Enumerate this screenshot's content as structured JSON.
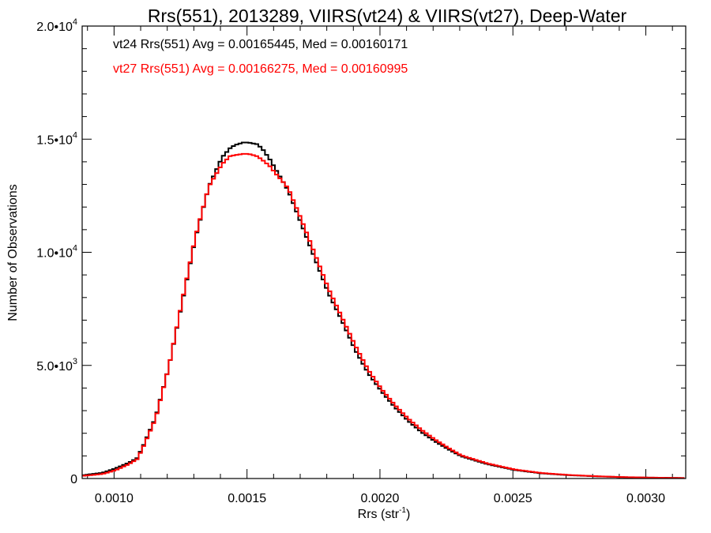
{
  "chart_data": {
    "type": "line",
    "title": "Rrs(551), 2013289, VIIRS(vt24) & VIIRS(vt27), Deep-Water",
    "xlabel": "Rrs (str",
    "xlabel_sup": "-1",
    "xlabel_end": ")",
    "ylabel": "Number of Observations",
    "xlim": [
      0.00088,
      0.00315
    ],
    "ylim": [
      0,
      20000
    ],
    "grid": false,
    "x_ticks": [
      {
        "value": 0.001,
        "label": "0.0010"
      },
      {
        "value": 0.0015,
        "label": "0.0015"
      },
      {
        "value": 0.002,
        "label": "0.0020"
      },
      {
        "value": 0.0025,
        "label": "0.0025"
      },
      {
        "value": 0.003,
        "label": "0.0030"
      }
    ],
    "y_ticks": [
      {
        "value": 0,
        "base": "0",
        "exp": ""
      },
      {
        "value": 5000,
        "base": "5.0•10",
        "exp": "3"
      },
      {
        "value": 10000,
        "base": "1.0•10",
        "exp": "4"
      },
      {
        "value": 15000,
        "base": "1.5•10",
        "exp": "4"
      },
      {
        "value": 20000,
        "base": "2.0•10",
        "exp": "4"
      }
    ],
    "annotations": [
      "vt24 Rrs(551) Avg = 0.00165445, Med = 0.00160171",
      "vt27 Rrs(551) Avg = 0.00166275, Med = 0.00160995"
    ],
    "series": [
      {
        "color": "#000000",
        "x": [
          0.00088,
          0.00095,
          0.001,
          0.00105,
          0.00108,
          0.0011,
          0.00115,
          0.0012,
          0.00125,
          0.0013,
          0.00135,
          0.0014,
          0.00143,
          0.00145,
          0.00148,
          0.0015,
          0.00153,
          0.00155,
          0.00158,
          0.0016,
          0.00163,
          0.00165,
          0.0017,
          0.00175,
          0.0018,
          0.00185,
          0.0019,
          0.00195,
          0.002,
          0.00205,
          0.0021,
          0.00215,
          0.0022,
          0.00225,
          0.0023,
          0.0024,
          0.0025,
          0.0026,
          0.0027,
          0.0028,
          0.0029,
          0.003,
          0.0031,
          0.00315
        ],
        "y": [
          150,
          250,
          450,
          700,
          900,
          1350,
          2700,
          4950,
          7800,
          10650,
          12900,
          14200,
          14600,
          14750,
          14850,
          14850,
          14780,
          14600,
          14100,
          13700,
          13100,
          12700,
          11200,
          9700,
          8200,
          7000,
          5700,
          4650,
          3850,
          3150,
          2550,
          2050,
          1650,
          1300,
          980,
          630,
          380,
          230,
          150,
          100,
          60,
          40,
          25,
          20
        ]
      },
      {
        "color": "#ff0000",
        "x": [
          0.00088,
          0.00095,
          0.001,
          0.00105,
          0.00108,
          0.0011,
          0.00115,
          0.0012,
          0.00125,
          0.0013,
          0.00135,
          0.0014,
          0.00143,
          0.00145,
          0.00148,
          0.0015,
          0.00153,
          0.00155,
          0.00158,
          0.0016,
          0.00163,
          0.00165,
          0.0017,
          0.00175,
          0.0018,
          0.00185,
          0.0019,
          0.00195,
          0.002,
          0.00205,
          0.0021,
          0.00215,
          0.0022,
          0.00225,
          0.0023,
          0.0024,
          0.0025,
          0.0026,
          0.0027,
          0.0028,
          0.0029,
          0.003,
          0.0031,
          0.00315
        ],
        "y": [
          120,
          200,
          370,
          640,
          850,
          1300,
          2650,
          4950,
          7850,
          10700,
          12900,
          13900,
          14250,
          14300,
          14350,
          14350,
          14250,
          14100,
          13800,
          13500,
          13100,
          12800,
          11400,
          9900,
          8400,
          7150,
          5900,
          4800,
          3950,
          3250,
          2650,
          2150,
          1730,
          1360,
          1020,
          660,
          400,
          245,
          160,
          105,
          65,
          42,
          27,
          20
        ]
      }
    ]
  }
}
